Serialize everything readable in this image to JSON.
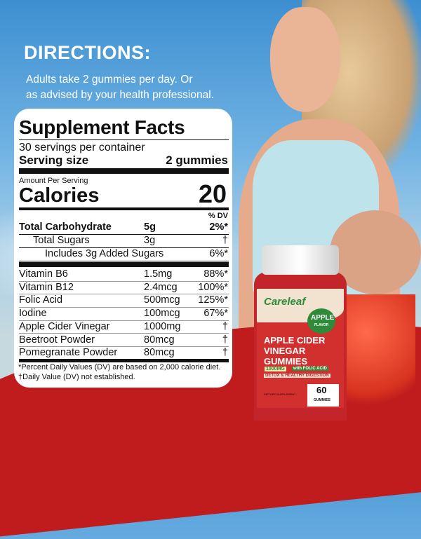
{
  "directions": {
    "title": "DIRECTIONS:",
    "text_line1": "Adults take 2 gummies per day. Or",
    "text_line2": "as advised by your health professional."
  },
  "facts": {
    "title": "Supplement Facts",
    "servings": "30 servings per container",
    "serving_size_label": "Serving size",
    "serving_size_value": "2 gummies",
    "amount_per_serving": "Amount Per Serving",
    "calories_label": "Calories",
    "calories_value": "20",
    "dv_header": "% DV",
    "rows_top": [
      {
        "name": "Total Carbohydrate",
        "amount": "5g",
        "dv": "2%*",
        "bold": true
      },
      {
        "name": "Total Sugars",
        "amount": "3g",
        "dv": "†"
      },
      {
        "name": "Includes 3g Added Sugars",
        "amount": "",
        "dv": "6%*"
      }
    ],
    "rows": [
      {
        "name": "Vitamin B6",
        "amount": "1.5mg",
        "dv": "88%*"
      },
      {
        "name": "Vitamin B12",
        "amount": "2.4mcg",
        "dv": "100%*"
      },
      {
        "name": "Folic Acid",
        "amount": "500mcg",
        "dv": "125%*"
      },
      {
        "name": "Iodine",
        "amount": "100mcg",
        "dv": "67%*"
      },
      {
        "name": "Apple Cider Vinegar",
        "amount": "1000mg",
        "dv": "†"
      },
      {
        "name": "Beetroot Powder",
        "amount": "80mcg",
        "dv": "†"
      },
      {
        "name": "Pomegranate Powder",
        "amount": "80mcg",
        "dv": "†"
      }
    ],
    "footnote1": "*Percent Daily Values (DV) are based on  2,000 calorie diet.",
    "footnote2": "†Daily Value (DV) not established."
  },
  "bottle": {
    "brand": "Careleaf",
    "flavor": "APPLE",
    "flavor_sub": "FLAVOR",
    "name1": "APPLE CIDER",
    "name2": "VINEGAR",
    "name3": "GUMMIES",
    "dose": "1000MG",
    "with": "with FOLIC ACID",
    "tagline": "DETOX & HEALTHY DIGESTION",
    "type": "DIETARY SUPPLEMENT",
    "count": "60",
    "count_unit": "GUMMIES"
  },
  "colors": {
    "red": "#c01c1e",
    "green": "#2e8b3a"
  }
}
